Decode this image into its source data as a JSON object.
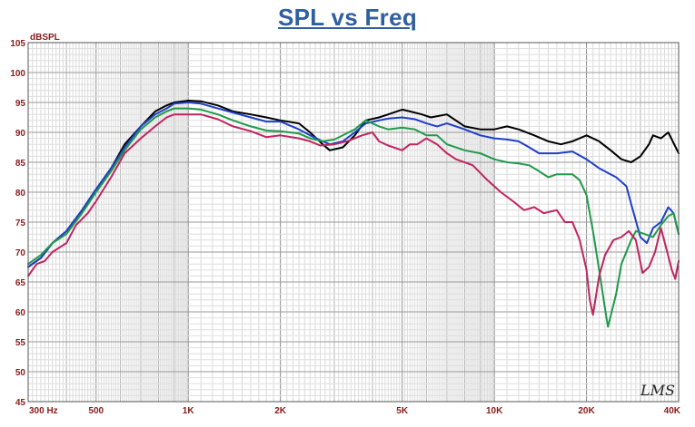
{
  "chart_data": {
    "type": "line",
    "title": "SPL vs Freq",
    "ylabel": "dBSPL",
    "xscale": "log",
    "xlim": [
      300,
      40000
    ],
    "ylim": [
      45,
      105
    ],
    "grid": true,
    "watermark": "LMS",
    "y_ticks": [
      45,
      50,
      55,
      60,
      65,
      70,
      75,
      80,
      85,
      90,
      95,
      100,
      105
    ],
    "x_ticks": [
      {
        "value": 300,
        "label": "300  Hz"
      },
      {
        "value": 500,
        "label": "500"
      },
      {
        "value": 1000,
        "label": "1K"
      },
      {
        "value": 2000,
        "label": "2K"
      },
      {
        "value": 5000,
        "label": "5K"
      },
      {
        "value": 10000,
        "label": "10K"
      },
      {
        "value": 20000,
        "label": "20K"
      },
      {
        "value": 40000,
        "label": "40K"
      }
    ],
    "series": [
      {
        "color": "#000000",
        "points": [
          [
            300,
            67.5
          ],
          [
            330,
            69
          ],
          [
            360,
            71.5
          ],
          [
            400,
            73.5
          ],
          [
            450,
            77
          ],
          [
            500,
            80.5
          ],
          [
            560,
            84
          ],
          [
            620,
            88
          ],
          [
            700,
            91
          ],
          [
            780,
            93.5
          ],
          [
            850,
            94.5
          ],
          [
            900,
            95
          ],
          [
            1000,
            95.3
          ],
          [
            1100,
            95.2
          ],
          [
            1250,
            94.5
          ],
          [
            1400,
            93.5
          ],
          [
            1600,
            93
          ],
          [
            1800,
            92.5
          ],
          [
            2000,
            92
          ],
          [
            2300,
            91.5
          ],
          [
            2500,
            90
          ],
          [
            2750,
            88
          ],
          [
            2900,
            87
          ],
          [
            3200,
            87.5
          ],
          [
            3500,
            89.5
          ],
          [
            3800,
            92
          ],
          [
            4200,
            92.5
          ],
          [
            4500,
            93
          ],
          [
            5000,
            93.8
          ],
          [
            5300,
            93.5
          ],
          [
            5800,
            93
          ],
          [
            6200,
            92.5
          ],
          [
            7000,
            93
          ],
          [
            8000,
            91
          ],
          [
            9000,
            90.5
          ],
          [
            10000,
            90.5
          ],
          [
            11000,
            91
          ],
          [
            12000,
            90.5
          ],
          [
            13500,
            89.5
          ],
          [
            15000,
            88.5
          ],
          [
            16500,
            88
          ],
          [
            18000,
            88.5
          ],
          [
            20000,
            89.5
          ],
          [
            22000,
            88.5
          ],
          [
            24000,
            87
          ],
          [
            26000,
            85.5
          ],
          [
            28000,
            85
          ],
          [
            30000,
            86
          ],
          [
            32000,
            88
          ],
          [
            33000,
            89.5
          ],
          [
            35000,
            89
          ],
          [
            37000,
            90
          ],
          [
            40000,
            86.5
          ]
        ]
      },
      {
        "color": "#1f3fc8",
        "points": [
          [
            300,
            67.5
          ],
          [
            330,
            69
          ],
          [
            360,
            71.5
          ],
          [
            400,
            73.5
          ],
          [
            450,
            77
          ],
          [
            500,
            80.5
          ],
          [
            560,
            84
          ],
          [
            620,
            87.5
          ],
          [
            700,
            91
          ],
          [
            780,
            93
          ],
          [
            850,
            94
          ],
          [
            900,
            94.8
          ],
          [
            1000,
            95
          ],
          [
            1100,
            94.8
          ],
          [
            1250,
            94
          ],
          [
            1400,
            93.3
          ],
          [
            1600,
            92.5
          ],
          [
            1800,
            91.8
          ],
          [
            2000,
            91.8
          ],
          [
            2300,
            90.5
          ],
          [
            2500,
            89.5
          ],
          [
            2750,
            88.5
          ],
          [
            2900,
            88
          ],
          [
            3200,
            88.5
          ],
          [
            3500,
            90
          ],
          [
            3800,
            91.5
          ],
          [
            4200,
            92
          ],
          [
            4500,
            92.3
          ],
          [
            5000,
            92.5
          ],
          [
            5500,
            92.2
          ],
          [
            6000,
            91.5
          ],
          [
            6500,
            91
          ],
          [
            7000,
            91.5
          ],
          [
            8000,
            90.5
          ],
          [
            9000,
            89.5
          ],
          [
            10000,
            89
          ],
          [
            11000,
            88.8
          ],
          [
            12000,
            88.5
          ],
          [
            13000,
            87.5
          ],
          [
            14000,
            86.5
          ],
          [
            16000,
            86.5
          ],
          [
            18000,
            86.8
          ],
          [
            20000,
            85.5
          ],
          [
            22000,
            84
          ],
          [
            25000,
            82.5
          ],
          [
            27000,
            81
          ],
          [
            28000,
            78
          ],
          [
            30000,
            72.5
          ],
          [
            31500,
            71.5
          ],
          [
            33000,
            74
          ],
          [
            35000,
            75
          ],
          [
            37000,
            77.5
          ],
          [
            38500,
            76.5
          ],
          [
            40000,
            73
          ]
        ]
      },
      {
        "color": "#1f9a4a",
        "points": [
          [
            300,
            68
          ],
          [
            330,
            69.5
          ],
          [
            360,
            71.5
          ],
          [
            400,
            73
          ],
          [
            450,
            76.5
          ],
          [
            500,
            80
          ],
          [
            560,
            83.5
          ],
          [
            620,
            87
          ],
          [
            700,
            90.5
          ],
          [
            780,
            92.5
          ],
          [
            850,
            93.5
          ],
          [
            900,
            94
          ],
          [
            1000,
            94
          ],
          [
            1100,
            93.8
          ],
          [
            1250,
            93
          ],
          [
            1400,
            92
          ],
          [
            1600,
            91
          ],
          [
            1800,
            90.3
          ],
          [
            2000,
            90.2
          ],
          [
            2300,
            89.8
          ],
          [
            2500,
            89
          ],
          [
            2750,
            88.5
          ],
          [
            3000,
            88.8
          ],
          [
            3500,
            90.5
          ],
          [
            3800,
            92
          ],
          [
            4200,
            91
          ],
          [
            4500,
            90.5
          ],
          [
            5000,
            90.8
          ],
          [
            5500,
            90.5
          ],
          [
            6000,
            89.5
          ],
          [
            6500,
            89.5
          ],
          [
            7000,
            88
          ],
          [
            8000,
            87
          ],
          [
            9000,
            86.5
          ],
          [
            10000,
            85.5
          ],
          [
            11000,
            85
          ],
          [
            12000,
            84.8
          ],
          [
            13000,
            84.5
          ],
          [
            14000,
            83.5
          ],
          [
            15000,
            82.5
          ],
          [
            16000,
            83
          ],
          [
            18000,
            83
          ],
          [
            19000,
            82
          ],
          [
            20000,
            79.5
          ],
          [
            21000,
            73.5
          ],
          [
            22000,
            67
          ],
          [
            23000,
            60.5
          ],
          [
            23500,
            57.5
          ],
          [
            25000,
            63
          ],
          [
            26000,
            68
          ],
          [
            28000,
            72
          ],
          [
            29000,
            73.5
          ],
          [
            31000,
            73
          ],
          [
            33000,
            72.5
          ],
          [
            35000,
            74.5
          ],
          [
            37000,
            76
          ],
          [
            38500,
            76.5
          ],
          [
            40000,
            73
          ]
        ]
      },
      {
        "color": "#c0245e",
        "points": [
          [
            300,
            66
          ],
          [
            320,
            68
          ],
          [
            340,
            68.5
          ],
          [
            360,
            70
          ],
          [
            400,
            71.5
          ],
          [
            430,
            74.5
          ],
          [
            470,
            76.5
          ],
          [
            500,
            78.5
          ],
          [
            560,
            82.5
          ],
          [
            620,
            86.5
          ],
          [
            700,
            89
          ],
          [
            780,
            91
          ],
          [
            850,
            92.5
          ],
          [
            900,
            93
          ],
          [
            1000,
            93
          ],
          [
            1100,
            93
          ],
          [
            1250,
            92.2
          ],
          [
            1400,
            91
          ],
          [
            1600,
            90.2
          ],
          [
            1800,
            89.2
          ],
          [
            2000,
            89.5
          ],
          [
            2300,
            89
          ],
          [
            2500,
            88.5
          ],
          [
            2700,
            87.8
          ],
          [
            3000,
            88
          ],
          [
            3300,
            88.5
          ],
          [
            3700,
            89.5
          ],
          [
            4000,
            90
          ],
          [
            4200,
            88.5
          ],
          [
            4500,
            87.8
          ],
          [
            5000,
            87
          ],
          [
            5300,
            88
          ],
          [
            5600,
            88
          ],
          [
            6000,
            89
          ],
          [
            6500,
            88
          ],
          [
            7000,
            86.5
          ],
          [
            7500,
            85.5
          ],
          [
            8500,
            84.5
          ],
          [
            9500,
            82
          ],
          [
            10500,
            80
          ],
          [
            11500,
            78.5
          ],
          [
            12500,
            77
          ],
          [
            13500,
            77.5
          ],
          [
            14500,
            76.5
          ],
          [
            16000,
            77
          ],
          [
            17000,
            75
          ],
          [
            18000,
            75
          ],
          [
            19000,
            72
          ],
          [
            20000,
            67
          ],
          [
            20500,
            62
          ],
          [
            21000,
            59.5
          ],
          [
            22000,
            66
          ],
          [
            23000,
            69.5
          ],
          [
            24500,
            72
          ],
          [
            26000,
            72.5
          ],
          [
            27500,
            73.5
          ],
          [
            29000,
            72
          ],
          [
            30500,
            66.5
          ],
          [
            32000,
            67.5
          ],
          [
            33500,
            70
          ],
          [
            35000,
            74
          ],
          [
            36500,
            70.5
          ],
          [
            38000,
            67
          ],
          [
            39000,
            65.5
          ],
          [
            40000,
            68.5
          ]
        ]
      }
    ]
  }
}
